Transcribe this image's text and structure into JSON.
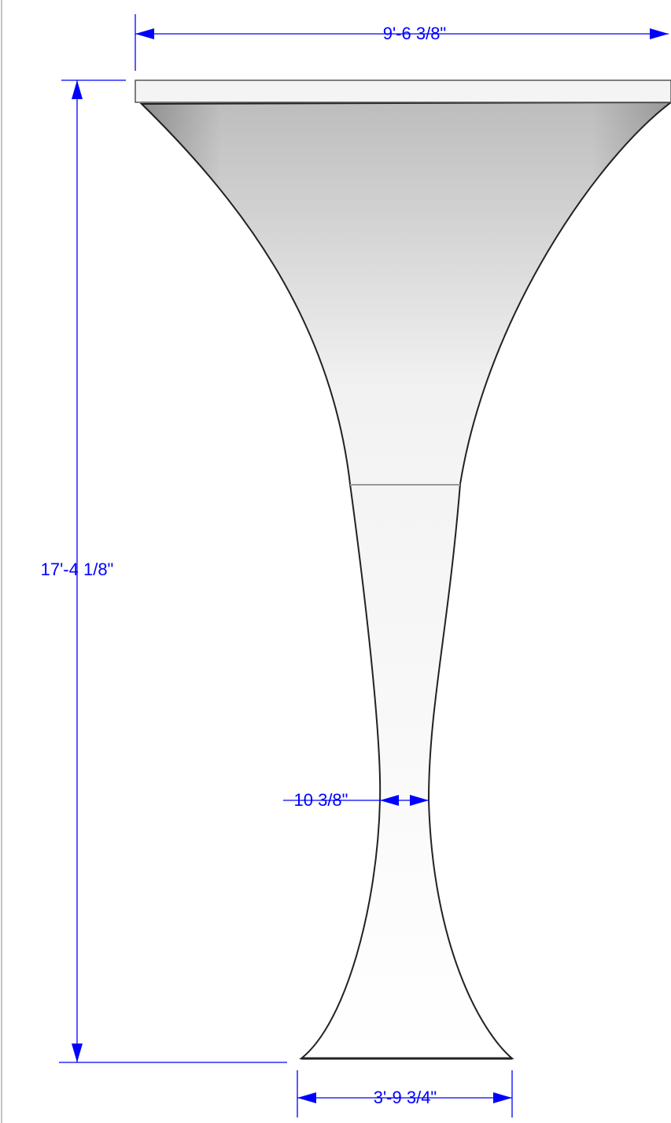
{
  "dimensions": [
    {
      "label": "9'-6 3/8\""
    },
    {
      "label": "17'-4 1/8\""
    },
    {
      "label": "10 3/8\""
    },
    {
      "label": "3'-9 3/4\""
    }
  ]
}
